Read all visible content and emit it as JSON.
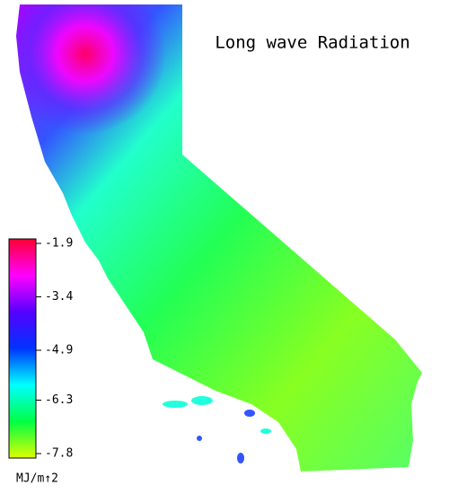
{
  "title": "Long wave Radiation",
  "colorbar": {
    "lim": [
      -7.8,
      -1.9
    ],
    "ticks": [
      -1.9,
      -3.4,
      -4.9,
      -6.3,
      -7.8
    ],
    "unit": "MJ/m↑2",
    "colors": [
      "#ff0033",
      "#ff00ff",
      "#5500ff",
      "#0033ff",
      "#00ffff",
      "#00ff44",
      "#ddff00"
    ]
  }
}
